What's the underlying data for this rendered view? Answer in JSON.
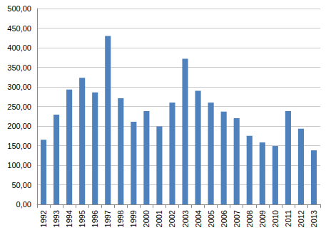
{
  "chart_data": {
    "type": "bar",
    "categories": [
      "1992",
      "1993",
      "1994",
      "1995",
      "1996",
      "1997",
      "1998",
      "1999",
      "2000",
      "2001",
      "2002",
      "2003",
      "2004",
      "2005",
      "2006",
      "2007",
      "2008",
      "2009",
      "2010",
      "2011",
      "2012",
      "2013"
    ],
    "values": [
      165,
      229,
      293,
      323,
      286,
      430,
      271,
      211,
      238,
      199,
      260,
      372,
      290,
      260,
      237,
      220,
      175,
      158,
      149,
      238,
      193,
      138
    ],
    "color": "#4f81bd",
    "ylim": [
      0,
      500
    ],
    "yticks": [
      {
        "value": 0,
        "label": "0,00"
      },
      {
        "value": 50,
        "label": "50,00"
      },
      {
        "value": 100,
        "label": "100,00"
      },
      {
        "value": 150,
        "label": "150,00"
      },
      {
        "value": 200,
        "label": "200,00"
      },
      {
        "value": 250,
        "label": "250,00"
      },
      {
        "value": 300,
        "label": "300,00"
      },
      {
        "value": 350,
        "label": "350,00"
      },
      {
        "value": 400,
        "label": "400,00"
      },
      {
        "value": 450,
        "label": "450,00"
      },
      {
        "value": 500,
        "label": "500,00"
      }
    ],
    "grid": true
  }
}
